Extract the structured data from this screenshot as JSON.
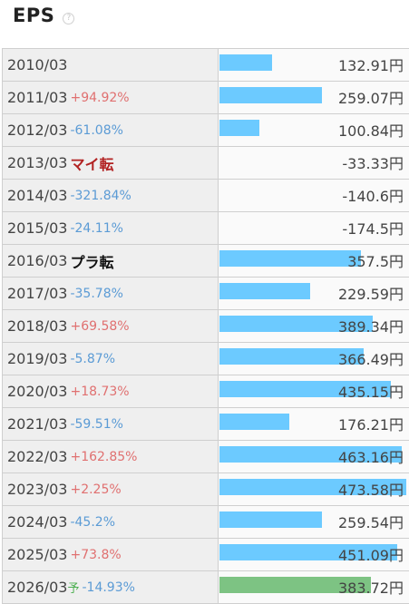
{
  "header": {
    "title": "EPS",
    "help": "?"
  },
  "rows": [
    {
      "year": "2010/03",
      "change": "",
      "dir": "",
      "value": "132.91円",
      "amount": 132.91,
      "forecast": ""
    },
    {
      "year": "2011/03",
      "change": "+94.92%",
      "dir": "up",
      "value": "259.07円",
      "amount": 259.07,
      "forecast": ""
    },
    {
      "year": "2012/03",
      "change": "-61.08%",
      "dir": "down",
      "value": "100.84円",
      "amount": 100.84,
      "forecast": ""
    },
    {
      "year": "2013/03",
      "change": "マイ転",
      "dir": "turn-neg",
      "value": "-33.33円",
      "amount": -33.33,
      "forecast": ""
    },
    {
      "year": "2014/03",
      "change": "-321.84%",
      "dir": "down",
      "value": "-140.6円",
      "amount": -140.6,
      "forecast": ""
    },
    {
      "year": "2015/03",
      "change": "-24.11%",
      "dir": "down",
      "value": "-174.5円",
      "amount": -174.5,
      "forecast": ""
    },
    {
      "year": "2016/03",
      "change": "プラ転",
      "dir": "turn-pos",
      "value": "357.5円",
      "amount": 357.5,
      "forecast": ""
    },
    {
      "year": "2017/03",
      "change": "-35.78%",
      "dir": "down",
      "value": "229.59円",
      "amount": 229.59,
      "forecast": ""
    },
    {
      "year": "2018/03",
      "change": "+69.58%",
      "dir": "up",
      "value": "389.34円",
      "amount": 389.34,
      "forecast": ""
    },
    {
      "year": "2019/03",
      "change": "-5.87%",
      "dir": "down",
      "value": "366.49円",
      "amount": 366.49,
      "forecast": ""
    },
    {
      "year": "2020/03",
      "change": "+18.73%",
      "dir": "up",
      "value": "435.15円",
      "amount": 435.15,
      "forecast": ""
    },
    {
      "year": "2021/03",
      "change": "-59.51%",
      "dir": "down",
      "value": "176.21円",
      "amount": 176.21,
      "forecast": ""
    },
    {
      "year": "2022/03",
      "change": "+162.85%",
      "dir": "up",
      "value": "463.16円",
      "amount": 463.16,
      "forecast": ""
    },
    {
      "year": "2023/03",
      "change": "+2.25%",
      "dir": "up",
      "value": "473.58円",
      "amount": 473.58,
      "forecast": ""
    },
    {
      "year": "2024/03",
      "change": "-45.2%",
      "dir": "down",
      "value": "259.54円",
      "amount": 259.54,
      "forecast": ""
    },
    {
      "year": "2025/03",
      "change": "+73.8%",
      "dir": "up",
      "value": "451.09円",
      "amount": 451.09,
      "forecast": ""
    },
    {
      "year": "2026/03",
      "change": "-14.93%",
      "dir": "down",
      "value": "383.72円",
      "amount": 383.72,
      "forecast": "予"
    }
  ],
  "colors": {
    "bar": "#6ccaff",
    "forecast_bar": "#7dc383",
    "up": "#e07070",
    "down": "#5b9bd5",
    "turn_negative": "#b22222"
  }
}
